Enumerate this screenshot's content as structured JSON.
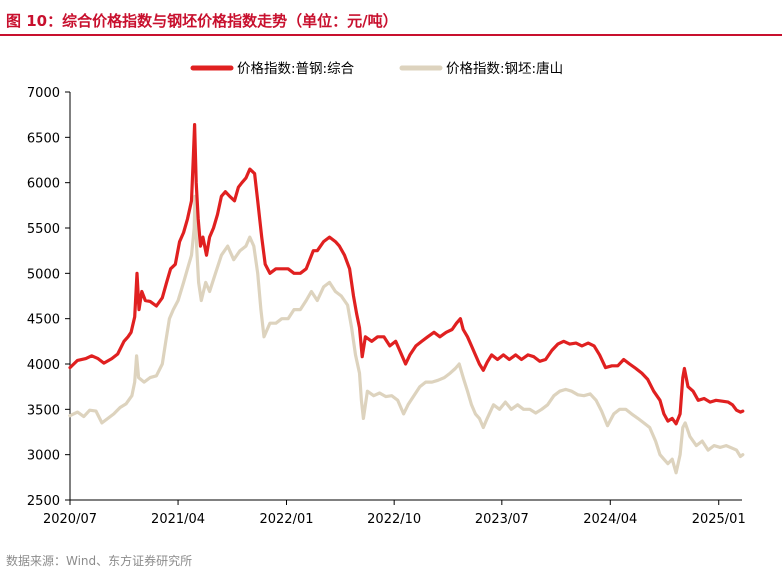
{
  "header": {
    "title": "图 10：综合价格指数与钢坯价格指数走势（单位：元/吨）"
  },
  "source": "数据来源：Wind、东方证券研究所",
  "colors": {
    "accent": "#c8102e",
    "series1": "#e02020",
    "series2": "#ddd3be"
  },
  "chart_data": {
    "type": "line",
    "ylim": [
      2500,
      7000
    ],
    "yticks": [
      2500,
      3000,
      3500,
      4000,
      4500,
      5000,
      5500,
      6000,
      6500,
      7000
    ],
    "xlim": [
      "2020-07",
      "2025-03"
    ],
    "xticks": [
      "2020/07",
      "2021/04",
      "2022/01",
      "2022/10",
      "2023/07",
      "2024/04",
      "2025/01"
    ],
    "legend_position": "top-center",
    "grid": false,
    "series": [
      {
        "name": "价格指数:普钢:综合",
        "color": "#e02020",
        "points": [
          [
            "2020-07-01",
            3960
          ],
          [
            "2020-07-20",
            4040
          ],
          [
            "2020-08-10",
            4060
          ],
          [
            "2020-08-25",
            4090
          ],
          [
            "2020-09-10",
            4060
          ],
          [
            "2020-09-25",
            4010
          ],
          [
            "2020-10-15",
            4060
          ],
          [
            "2020-10-30",
            4110
          ],
          [
            "2020-11-15",
            4250
          ],
          [
            "2020-11-25",
            4300
          ],
          [
            "2020-12-03",
            4350
          ],
          [
            "2020-12-12",
            4520
          ],
          [
            "2020-12-18",
            5000
          ],
          [
            "2020-12-23",
            4600
          ],
          [
            "2020-12-30",
            4800
          ],
          [
            "2021-01-08",
            4700
          ],
          [
            "2021-01-20",
            4690
          ],
          [
            "2021-02-05",
            4640
          ],
          [
            "2021-02-20",
            4730
          ],
          [
            "2021-03-03",
            4900
          ],
          [
            "2021-03-13",
            5050
          ],
          [
            "2021-03-25",
            5100
          ],
          [
            "2021-04-05",
            5350
          ],
          [
            "2021-04-15",
            5450
          ],
          [
            "2021-04-25",
            5600
          ],
          [
            "2021-05-05",
            5800
          ],
          [
            "2021-05-10",
            6300
          ],
          [
            "2021-05-13",
            6640
          ],
          [
            "2021-05-17",
            6000
          ],
          [
            "2021-05-22",
            5600
          ],
          [
            "2021-05-28",
            5300
          ],
          [
            "2021-06-03",
            5400
          ],
          [
            "2021-06-12",
            5200
          ],
          [
            "2021-06-20",
            5400
          ],
          [
            "2021-06-30",
            5500
          ],
          [
            "2021-07-10",
            5650
          ],
          [
            "2021-07-20",
            5850
          ],
          [
            "2021-07-30",
            5900
          ],
          [
            "2021-08-10",
            5850
          ],
          [
            "2021-08-22",
            5800
          ],
          [
            "2021-09-01",
            5950
          ],
          [
            "2021-09-10",
            6000
          ],
          [
            "2021-09-20",
            6050
          ],
          [
            "2021-09-30",
            6150
          ],
          [
            "2021-10-12",
            6100
          ],
          [
            "2021-10-20",
            5800
          ],
          [
            "2021-10-30",
            5400
          ],
          [
            "2021-11-08",
            5100
          ],
          [
            "2021-11-20",
            5000
          ],
          [
            "2021-12-05",
            5050
          ],
          [
            "2021-12-20",
            5050
          ],
          [
            "2022-01-05",
            5050
          ],
          [
            "2022-01-20",
            5000
          ],
          [
            "2022-02-05",
            5000
          ],
          [
            "2022-02-20",
            5050
          ],
          [
            "2022-03-10",
            5250
          ],
          [
            "2022-03-20",
            5250
          ],
          [
            "2022-04-05",
            5350
          ],
          [
            "2022-04-20",
            5400
          ],
          [
            "2022-05-05",
            5350
          ],
          [
            "2022-05-15",
            5300
          ],
          [
            "2022-05-28",
            5200
          ],
          [
            "2022-06-10",
            5050
          ],
          [
            "2022-06-20",
            4750
          ],
          [
            "2022-06-28",
            4550
          ],
          [
            "2022-07-05",
            4400
          ],
          [
            "2022-07-12",
            4080
          ],
          [
            "2022-07-20",
            4300
          ],
          [
            "2022-08-05",
            4250
          ],
          [
            "2022-08-20",
            4300
          ],
          [
            "2022-09-05",
            4300
          ],
          [
            "2022-09-20",
            4200
          ],
          [
            "2022-10-05",
            4250
          ],
          [
            "2022-10-15",
            4150
          ],
          [
            "2022-10-30",
            4000
          ],
          [
            "2022-11-10",
            4100
          ],
          [
            "2022-11-25",
            4200
          ],
          [
            "2022-12-10",
            4250
          ],
          [
            "2022-12-25",
            4300
          ],
          [
            "2023-01-10",
            4350
          ],
          [
            "2023-01-25",
            4300
          ],
          [
            "2023-02-10",
            4350
          ],
          [
            "2023-02-25",
            4380
          ],
          [
            "2023-03-08",
            4450
          ],
          [
            "2023-03-18",
            4500
          ],
          [
            "2023-03-25",
            4380
          ],
          [
            "2023-04-05",
            4300
          ],
          [
            "2023-04-15",
            4200
          ],
          [
            "2023-04-25",
            4100
          ],
          [
            "2023-05-05",
            4000
          ],
          [
            "2023-05-15",
            3930
          ],
          [
            "2023-05-25",
            4020
          ],
          [
            "2023-06-05",
            4100
          ],
          [
            "2023-06-20",
            4050
          ],
          [
            "2023-07-05",
            4100
          ],
          [
            "2023-07-20",
            4050
          ],
          [
            "2023-08-05",
            4100
          ],
          [
            "2023-08-20",
            4050
          ],
          [
            "2023-09-05",
            4100
          ],
          [
            "2023-09-20",
            4080
          ],
          [
            "2023-10-05",
            4030
          ],
          [
            "2023-10-20",
            4050
          ],
          [
            "2023-11-05",
            4150
          ],
          [
            "2023-11-20",
            4220
          ],
          [
            "2023-12-05",
            4250
          ],
          [
            "2023-12-20",
            4220
          ],
          [
            "2024-01-05",
            4230
          ],
          [
            "2024-01-20",
            4200
          ],
          [
            "2024-02-05",
            4230
          ],
          [
            "2024-02-20",
            4200
          ],
          [
            "2024-03-05",
            4100
          ],
          [
            "2024-03-20",
            3960
          ],
          [
            "2024-04-05",
            3980
          ],
          [
            "2024-04-20",
            3980
          ],
          [
            "2024-05-05",
            4050
          ],
          [
            "2024-05-20",
            4000
          ],
          [
            "2024-06-05",
            3950
          ],
          [
            "2024-06-20",
            3900
          ],
          [
            "2024-07-05",
            3830
          ],
          [
            "2024-07-20",
            3700
          ],
          [
            "2024-08-05",
            3600
          ],
          [
            "2024-08-15",
            3450
          ],
          [
            "2024-08-25",
            3370
          ],
          [
            "2024-09-05",
            3400
          ],
          [
            "2024-09-15",
            3340
          ],
          [
            "2024-09-25",
            3450
          ],
          [
            "2024-10-02",
            3850
          ],
          [
            "2024-10-06",
            3950
          ],
          [
            "2024-10-15",
            3750
          ],
          [
            "2024-10-28",
            3700
          ],
          [
            "2024-11-10",
            3600
          ],
          [
            "2024-11-25",
            3620
          ],
          [
            "2024-12-10",
            3580
          ],
          [
            "2024-12-25",
            3600
          ],
          [
            "2025-01-10",
            3590
          ],
          [
            "2025-01-25",
            3580
          ],
          [
            "2025-02-05",
            3550
          ],
          [
            "2025-02-15",
            3490
          ],
          [
            "2025-02-25",
            3470
          ],
          [
            "2025-03-03",
            3480
          ]
        ]
      },
      {
        "name": "价格指数:钢坯:唐山",
        "color": "#ddd3be",
        "points": [
          [
            "2020-07-01",
            3430
          ],
          [
            "2020-07-20",
            3470
          ],
          [
            "2020-08-05",
            3420
          ],
          [
            "2020-08-20",
            3490
          ],
          [
            "2020-09-05",
            3480
          ],
          [
            "2020-09-20",
            3350
          ],
          [
            "2020-10-05",
            3400
          ],
          [
            "2020-10-20",
            3450
          ],
          [
            "2020-11-05",
            3520
          ],
          [
            "2020-11-20",
            3560
          ],
          [
            "2020-12-05",
            3650
          ],
          [
            "2020-12-12",
            3800
          ],
          [
            "2020-12-17",
            4090
          ],
          [
            "2020-12-22",
            3850
          ],
          [
            "2021-01-05",
            3800
          ],
          [
            "2021-01-20",
            3850
          ],
          [
            "2021-02-05",
            3870
          ],
          [
            "2021-02-20",
            4000
          ],
          [
            "2021-03-01",
            4250
          ],
          [
            "2021-03-10",
            4500
          ],
          [
            "2021-03-20",
            4600
          ],
          [
            "2021-04-01",
            4700
          ],
          [
            "2021-04-15",
            4900
          ],
          [
            "2021-04-25",
            5050
          ],
          [
            "2021-05-05",
            5200
          ],
          [
            "2021-05-12",
            5500
          ],
          [
            "2021-05-14",
            5850
          ],
          [
            "2021-05-18",
            5300
          ],
          [
            "2021-05-23",
            4900
          ],
          [
            "2021-05-30",
            4700
          ],
          [
            "2021-06-10",
            4900
          ],
          [
            "2021-06-20",
            4800
          ],
          [
            "2021-07-05",
            5000
          ],
          [
            "2021-07-20",
            5200
          ],
          [
            "2021-08-05",
            5300
          ],
          [
            "2021-08-20",
            5150
          ],
          [
            "2021-09-05",
            5250
          ],
          [
            "2021-09-20",
            5300
          ],
          [
            "2021-09-30",
            5400
          ],
          [
            "2021-10-10",
            5300
          ],
          [
            "2021-10-20",
            5000
          ],
          [
            "2021-10-28",
            4600
          ],
          [
            "2021-11-05",
            4300
          ],
          [
            "2021-11-20",
            4450
          ],
          [
            "2021-12-05",
            4450
          ],
          [
            "2021-12-20",
            4500
          ],
          [
            "2022-01-05",
            4500
          ],
          [
            "2022-01-20",
            4600
          ],
          [
            "2022-02-05",
            4600
          ],
          [
            "2022-02-20",
            4700
          ],
          [
            "2022-03-05",
            4800
          ],
          [
            "2022-03-20",
            4700
          ],
          [
            "2022-04-05",
            4850
          ],
          [
            "2022-04-20",
            4900
          ],
          [
            "2022-05-05",
            4800
          ],
          [
            "2022-05-20",
            4750
          ],
          [
            "2022-06-05",
            4650
          ],
          [
            "2022-06-15",
            4400
          ],
          [
            "2022-06-25",
            4100
          ],
          [
            "2022-07-05",
            3900
          ],
          [
            "2022-07-10",
            3600
          ],
          [
            "2022-07-15",
            3400
          ],
          [
            "2022-07-25",
            3700
          ],
          [
            "2022-08-10",
            3650
          ],
          [
            "2022-08-25",
            3680
          ],
          [
            "2022-09-10",
            3640
          ],
          [
            "2022-09-25",
            3650
          ],
          [
            "2022-10-10",
            3600
          ],
          [
            "2022-10-25",
            3450
          ],
          [
            "2022-11-05",
            3550
          ],
          [
            "2022-11-20",
            3650
          ],
          [
            "2022-12-05",
            3750
          ],
          [
            "2022-12-20",
            3800
          ],
          [
            "2023-01-05",
            3800
          ],
          [
            "2023-01-20",
            3820
          ],
          [
            "2023-02-05",
            3850
          ],
          [
            "2023-02-20",
            3900
          ],
          [
            "2023-03-05",
            3950
          ],
          [
            "2023-03-15",
            4000
          ],
          [
            "2023-03-25",
            3850
          ],
          [
            "2023-04-05",
            3700
          ],
          [
            "2023-04-15",
            3550
          ],
          [
            "2023-04-25",
            3450
          ],
          [
            "2023-05-05",
            3400
          ],
          [
            "2023-05-15",
            3300
          ],
          [
            "2023-05-25",
            3400
          ],
          [
            "2023-06-10",
            3550
          ],
          [
            "2023-06-25",
            3500
          ],
          [
            "2023-07-10",
            3580
          ],
          [
            "2023-07-25",
            3500
          ],
          [
            "2023-08-10",
            3550
          ],
          [
            "2023-08-25",
            3500
          ],
          [
            "2023-09-10",
            3500
          ],
          [
            "2023-09-25",
            3460
          ],
          [
            "2023-10-10",
            3500
          ],
          [
            "2023-10-25",
            3550
          ],
          [
            "2023-11-10",
            3650
          ],
          [
            "2023-11-25",
            3700
          ],
          [
            "2023-12-10",
            3720
          ],
          [
            "2023-12-25",
            3700
          ],
          [
            "2024-01-10",
            3660
          ],
          [
            "2024-01-25",
            3650
          ],
          [
            "2024-02-10",
            3670
          ],
          [
            "2024-02-25",
            3600
          ],
          [
            "2024-03-10",
            3480
          ],
          [
            "2024-03-25",
            3320
          ],
          [
            "2024-04-10",
            3450
          ],
          [
            "2024-04-25",
            3500
          ],
          [
            "2024-05-10",
            3500
          ],
          [
            "2024-05-25",
            3450
          ],
          [
            "2024-06-10",
            3400
          ],
          [
            "2024-06-25",
            3350
          ],
          [
            "2024-07-10",
            3300
          ],
          [
            "2024-07-25",
            3150
          ],
          [
            "2024-08-05",
            3000
          ],
          [
            "2024-08-15",
            2950
          ],
          [
            "2024-08-25",
            2900
          ],
          [
            "2024-09-05",
            2950
          ],
          [
            "2024-09-15",
            2800
          ],
          [
            "2024-09-25",
            3000
          ],
          [
            "2024-10-02",
            3300
          ],
          [
            "2024-10-08",
            3350
          ],
          [
            "2024-10-20",
            3200
          ],
          [
            "2024-11-05",
            3100
          ],
          [
            "2024-11-20",
            3150
          ],
          [
            "2024-12-05",
            3050
          ],
          [
            "2024-12-20",
            3100
          ],
          [
            "2025-01-05",
            3080
          ],
          [
            "2025-01-20",
            3100
          ],
          [
            "2025-02-05",
            3070
          ],
          [
            "2025-02-15",
            3050
          ],
          [
            "2025-02-25",
            2980
          ],
          [
            "2025-03-03",
            3000
          ]
        ]
      }
    ]
  }
}
